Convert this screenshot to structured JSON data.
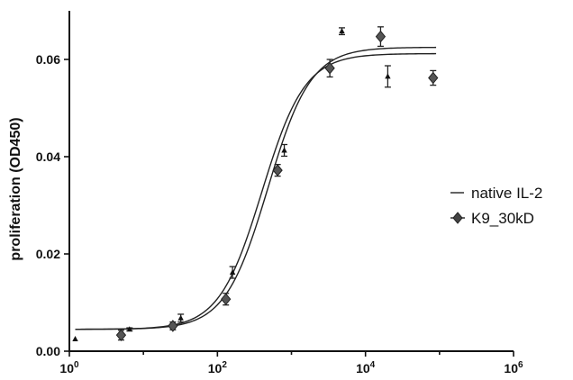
{
  "chart_data": {
    "type": "scatter",
    "title": "",
    "xlabel": "",
    "ylabel": "proliferation (OD450)",
    "x_scale": "log10",
    "xlim": [
      1,
      1000000
    ],
    "ylim": [
      0,
      0.07
    ],
    "x_ticks": [
      1,
      100,
      10000,
      1000000
    ],
    "x_tick_labels": [
      {
        "base": "10",
        "exp": "0"
      },
      {
        "base": "10",
        "exp": "2"
      },
      {
        "base": "10",
        "exp": "4"
      },
      {
        "base": "10",
        "exp": "6"
      }
    ],
    "y_ticks": [
      0,
      0.02,
      0.04,
      0.06
    ],
    "y_tick_labels": [
      "0.00",
      "0.02",
      "0.04",
      "0.06"
    ],
    "grid": false,
    "legend_position": "right",
    "series": [
      {
        "name": "native IL-2",
        "marker": "triangle",
        "color": "#222222",
        "points": [
          {
            "x": 1.2,
            "y": 0.0025,
            "err": 0
          },
          {
            "x": 6.5,
            "y": 0.0045,
            "err": 0.0003
          },
          {
            "x": 32,
            "y": 0.0068,
            "err": 0.0008
          },
          {
            "x": 160,
            "y": 0.0162,
            "err": 0.0012
          },
          {
            "x": 800,
            "y": 0.0413,
            "err": 0.0012
          },
          {
            "x": 4800,
            "y": 0.0658,
            "err": 0.0007
          },
          {
            "x": 20000,
            "y": 0.0565,
            "err": 0.0022
          }
        ],
        "fit": {
          "bottom": 0.0045,
          "top": 0.0612,
          "ec50": 400,
          "hill": 1.5
        }
      },
      {
        "name": "K9_30kD",
        "marker": "diamond",
        "color": "#222222",
        "points": [
          {
            "x": 5,
            "y": 0.0033,
            "err": 0.001
          },
          {
            "x": 25,
            "y": 0.0052,
            "err": 0.0008
          },
          {
            "x": 130,
            "y": 0.0107,
            "err": 0.0012
          },
          {
            "x": 650,
            "y": 0.0372,
            "err": 0.0012
          },
          {
            "x": 3300,
            "y": 0.0582,
            "err": 0.0018
          },
          {
            "x": 16000,
            "y": 0.0647,
            "err": 0.002
          },
          {
            "x": 82000,
            "y": 0.0562,
            "err": 0.0015
          }
        ],
        "fit": {
          "bottom": 0.0045,
          "top": 0.0625,
          "ec50": 480,
          "hill": 1.5
        }
      }
    ]
  }
}
